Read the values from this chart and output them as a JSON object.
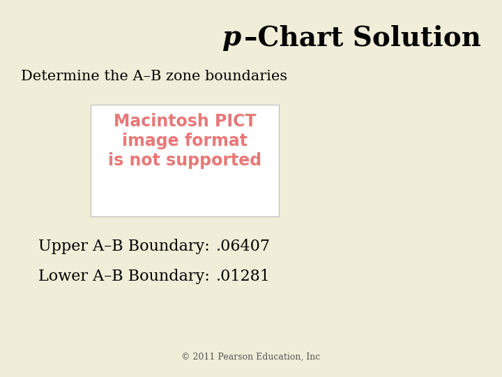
{
  "background_color": "#f0edd8",
  "title_italic": "p",
  "title_rest": "–Chart Solution",
  "subtitle": "Determine the A–B zone boundaries",
  "upper_label": "Upper A–B Boundary:",
  "upper_value": ".06407",
  "lower_label": "Lower A–B Boundary:",
  "lower_value": ".01281",
  "footer": "© 2011 Pearson Education, Inc",
  "pict_line1": "Macintosh PICT",
  "pict_line2": "image format",
  "pict_line3": "is not supported",
  "pict_color": "#e87878",
  "pict_box_color": "#ffffff",
  "title_fontsize": 28,
  "subtitle_fontsize": 15,
  "body_fontsize": 16,
  "footer_fontsize": 9,
  "pict_fontsize": 17
}
